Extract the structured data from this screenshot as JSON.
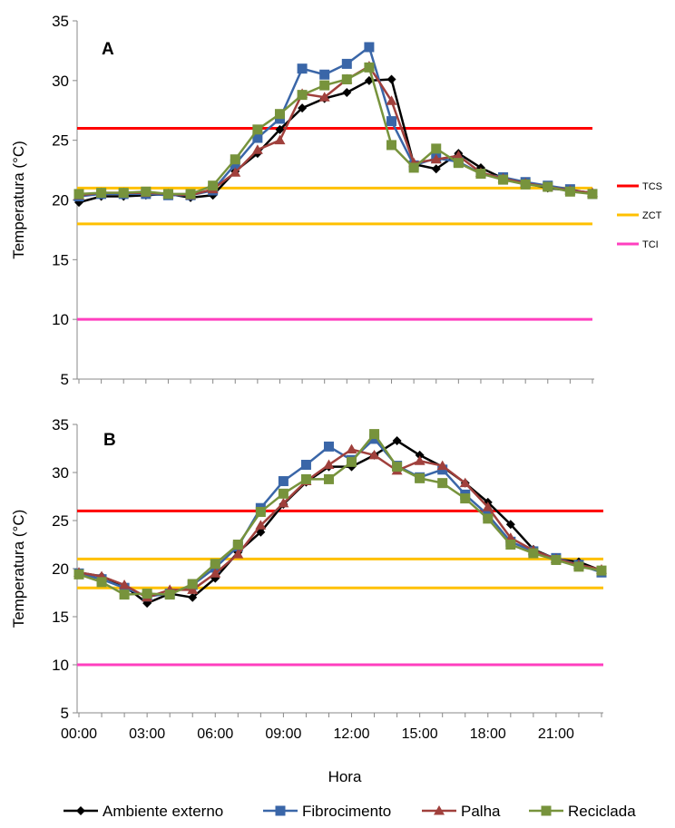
{
  "chart_data": [
    {
      "type": "line",
      "panel_label": "A",
      "ylabel": "Temperatura (°C)",
      "xlabel": "",
      "ylim": [
        5,
        35
      ],
      "yticks": [
        5,
        10,
        15,
        20,
        25,
        30,
        35
      ],
      "x": [
        0,
        1,
        2,
        3,
        4,
        5,
        6,
        7,
        8,
        9,
        10,
        11,
        12,
        13,
        14,
        15,
        16,
        17,
        18,
        19,
        20,
        21,
        22,
        23
      ],
      "series": [
        {
          "name": "Ambiente externo",
          "color": "#000000",
          "marker": "diamond",
          "values": [
            19.8,
            20.3,
            20.3,
            20.4,
            20.5,
            20.2,
            20.4,
            22.4,
            23.9,
            25.9,
            27.7,
            28.5,
            29.0,
            30.0,
            30.1,
            23.0,
            22.6,
            23.9,
            22.7,
            21.8,
            21.4,
            21.0,
            20.8,
            20.6
          ]
        },
        {
          "name": "Fibrocimento",
          "color": "#3a66a8",
          "marker": "square",
          "values": [
            20.3,
            20.5,
            20.5,
            20.5,
            20.4,
            20.4,
            20.8,
            23.0,
            25.2,
            26.8,
            31.0,
            30.5,
            31.4,
            32.8,
            26.6,
            22.9,
            23.5,
            23.2,
            22.2,
            21.9,
            21.5,
            21.2,
            20.9,
            20.5
          ]
        },
        {
          "name": "Palha",
          "color": "#a0403c",
          "marker": "triangle",
          "values": [
            20.4,
            20.6,
            20.6,
            20.6,
            20.5,
            20.4,
            20.9,
            22.3,
            24.2,
            25.0,
            28.9,
            28.6,
            30.1,
            31.2,
            28.3,
            23.1,
            23.4,
            23.7,
            22.3,
            21.8,
            21.4,
            21.1,
            20.8,
            20.6
          ]
        },
        {
          "name": "Reciclada",
          "color": "#77933c",
          "marker": "square",
          "values": [
            20.5,
            20.6,
            20.6,
            20.7,
            20.5,
            20.5,
            21.2,
            23.4,
            25.9,
            27.2,
            28.8,
            29.6,
            30.1,
            31.1,
            24.6,
            22.7,
            24.3,
            23.1,
            22.2,
            21.7,
            21.3,
            21.1,
            20.7,
            20.5
          ]
        }
      ],
      "reference_lines": [
        {
          "id": "TCS",
          "value": 26,
          "color": "#ff0000"
        },
        {
          "id": "ZCT_upper",
          "value": 21,
          "color": "#ffc000"
        },
        {
          "id": "ZCT_lower",
          "value": 18,
          "color": "#ffc000"
        },
        {
          "id": "TCI",
          "value": 10,
          "color": "#ff3fbf"
        }
      ],
      "reference_legend": [
        {
          "label": "TCS",
          "color": "#ff0000"
        },
        {
          "label": "ZCT",
          "color": "#ffc000"
        },
        {
          "label": "TCI",
          "color": "#ff3fbf"
        }
      ]
    },
    {
      "type": "line",
      "panel_label": "B",
      "ylabel": "Temperatura (°C)",
      "xlabel": "Hora",
      "ylim": [
        5,
        35
      ],
      "yticks": [
        5,
        10,
        15,
        20,
        25,
        30,
        35
      ],
      "x": [
        0,
        1,
        2,
        3,
        4,
        5,
        6,
        7,
        8,
        9,
        10,
        11,
        12,
        13,
        14,
        15,
        16,
        17,
        18,
        19,
        20,
        21,
        22,
        23
      ],
      "xtick_labels": [
        {
          "x": 0,
          "label": "00:00"
        },
        {
          "x": 3,
          "label": "03:00"
        },
        {
          "x": 6,
          "label": "06:00"
        },
        {
          "x": 9,
          "label": "09:00"
        },
        {
          "x": 12,
          "label": "12:00"
        },
        {
          "x": 15,
          "label": "15:00"
        },
        {
          "x": 18,
          "label": "18:00"
        },
        {
          "x": 21,
          "label": "21:00"
        }
      ],
      "series": [
        {
          "name": "Ambiente externo",
          "color": "#000000",
          "marker": "diamond",
          "values": [
            19.6,
            19.2,
            18.2,
            16.4,
            17.4,
            17.0,
            19.0,
            21.7,
            23.8,
            26.7,
            29.0,
            30.6,
            30.6,
            31.8,
            33.3,
            31.8,
            30.6,
            28.9,
            26.9,
            24.6,
            22.0,
            21.0,
            20.7,
            19.8
          ]
        },
        {
          "name": "Fibrocimento",
          "color": "#3a66a8",
          "marker": "square",
          "values": [
            19.5,
            18.9,
            18.0,
            17.1,
            17.4,
            18.3,
            20.1,
            22.3,
            26.3,
            29.1,
            30.8,
            32.7,
            31.3,
            33.5,
            30.7,
            29.5,
            30.3,
            27.7,
            25.6,
            22.8,
            21.8,
            21.1,
            20.4,
            19.6
          ]
        },
        {
          "name": "Palha",
          "color": "#a0403c",
          "marker": "triangle",
          "values": [
            19.6,
            19.2,
            18.3,
            17.0,
            17.8,
            17.8,
            19.5,
            21.5,
            24.5,
            26.8,
            29.1,
            30.8,
            32.4,
            31.8,
            30.2,
            31.2,
            30.7,
            28.9,
            26.4,
            23.2,
            21.9,
            21.0,
            20.4,
            19.9
          ]
        },
        {
          "name": "Reciclada",
          "color": "#77933c",
          "marker": "square",
          "values": [
            19.4,
            18.6,
            17.3,
            17.4,
            17.3,
            18.4,
            20.5,
            22.5,
            25.9,
            27.8,
            29.3,
            29.3,
            31.1,
            34.0,
            30.6,
            29.4,
            28.9,
            27.3,
            25.2,
            22.5,
            21.6,
            20.9,
            20.2,
            19.8
          ]
        }
      ],
      "reference_lines": [
        {
          "id": "TCS",
          "value": 26,
          "color": "#ff0000"
        },
        {
          "id": "ZCT_upper",
          "value": 21,
          "color": "#ffc000"
        },
        {
          "id": "ZCT_lower",
          "value": 18,
          "color": "#ffc000"
        },
        {
          "id": "TCI",
          "value": 10,
          "color": "#ff3fbf"
        }
      ]
    }
  ],
  "legend": [
    {
      "label": "Ambiente externo",
      "color": "#000000",
      "marker": "diamond"
    },
    {
      "label": "Fibrocimento",
      "color": "#3a66a8",
      "marker": "square"
    },
    {
      "label": "Palha",
      "color": "#a0403c",
      "marker": "triangle"
    },
    {
      "label": "Reciclada",
      "color": "#77933c",
      "marker": "square"
    }
  ]
}
